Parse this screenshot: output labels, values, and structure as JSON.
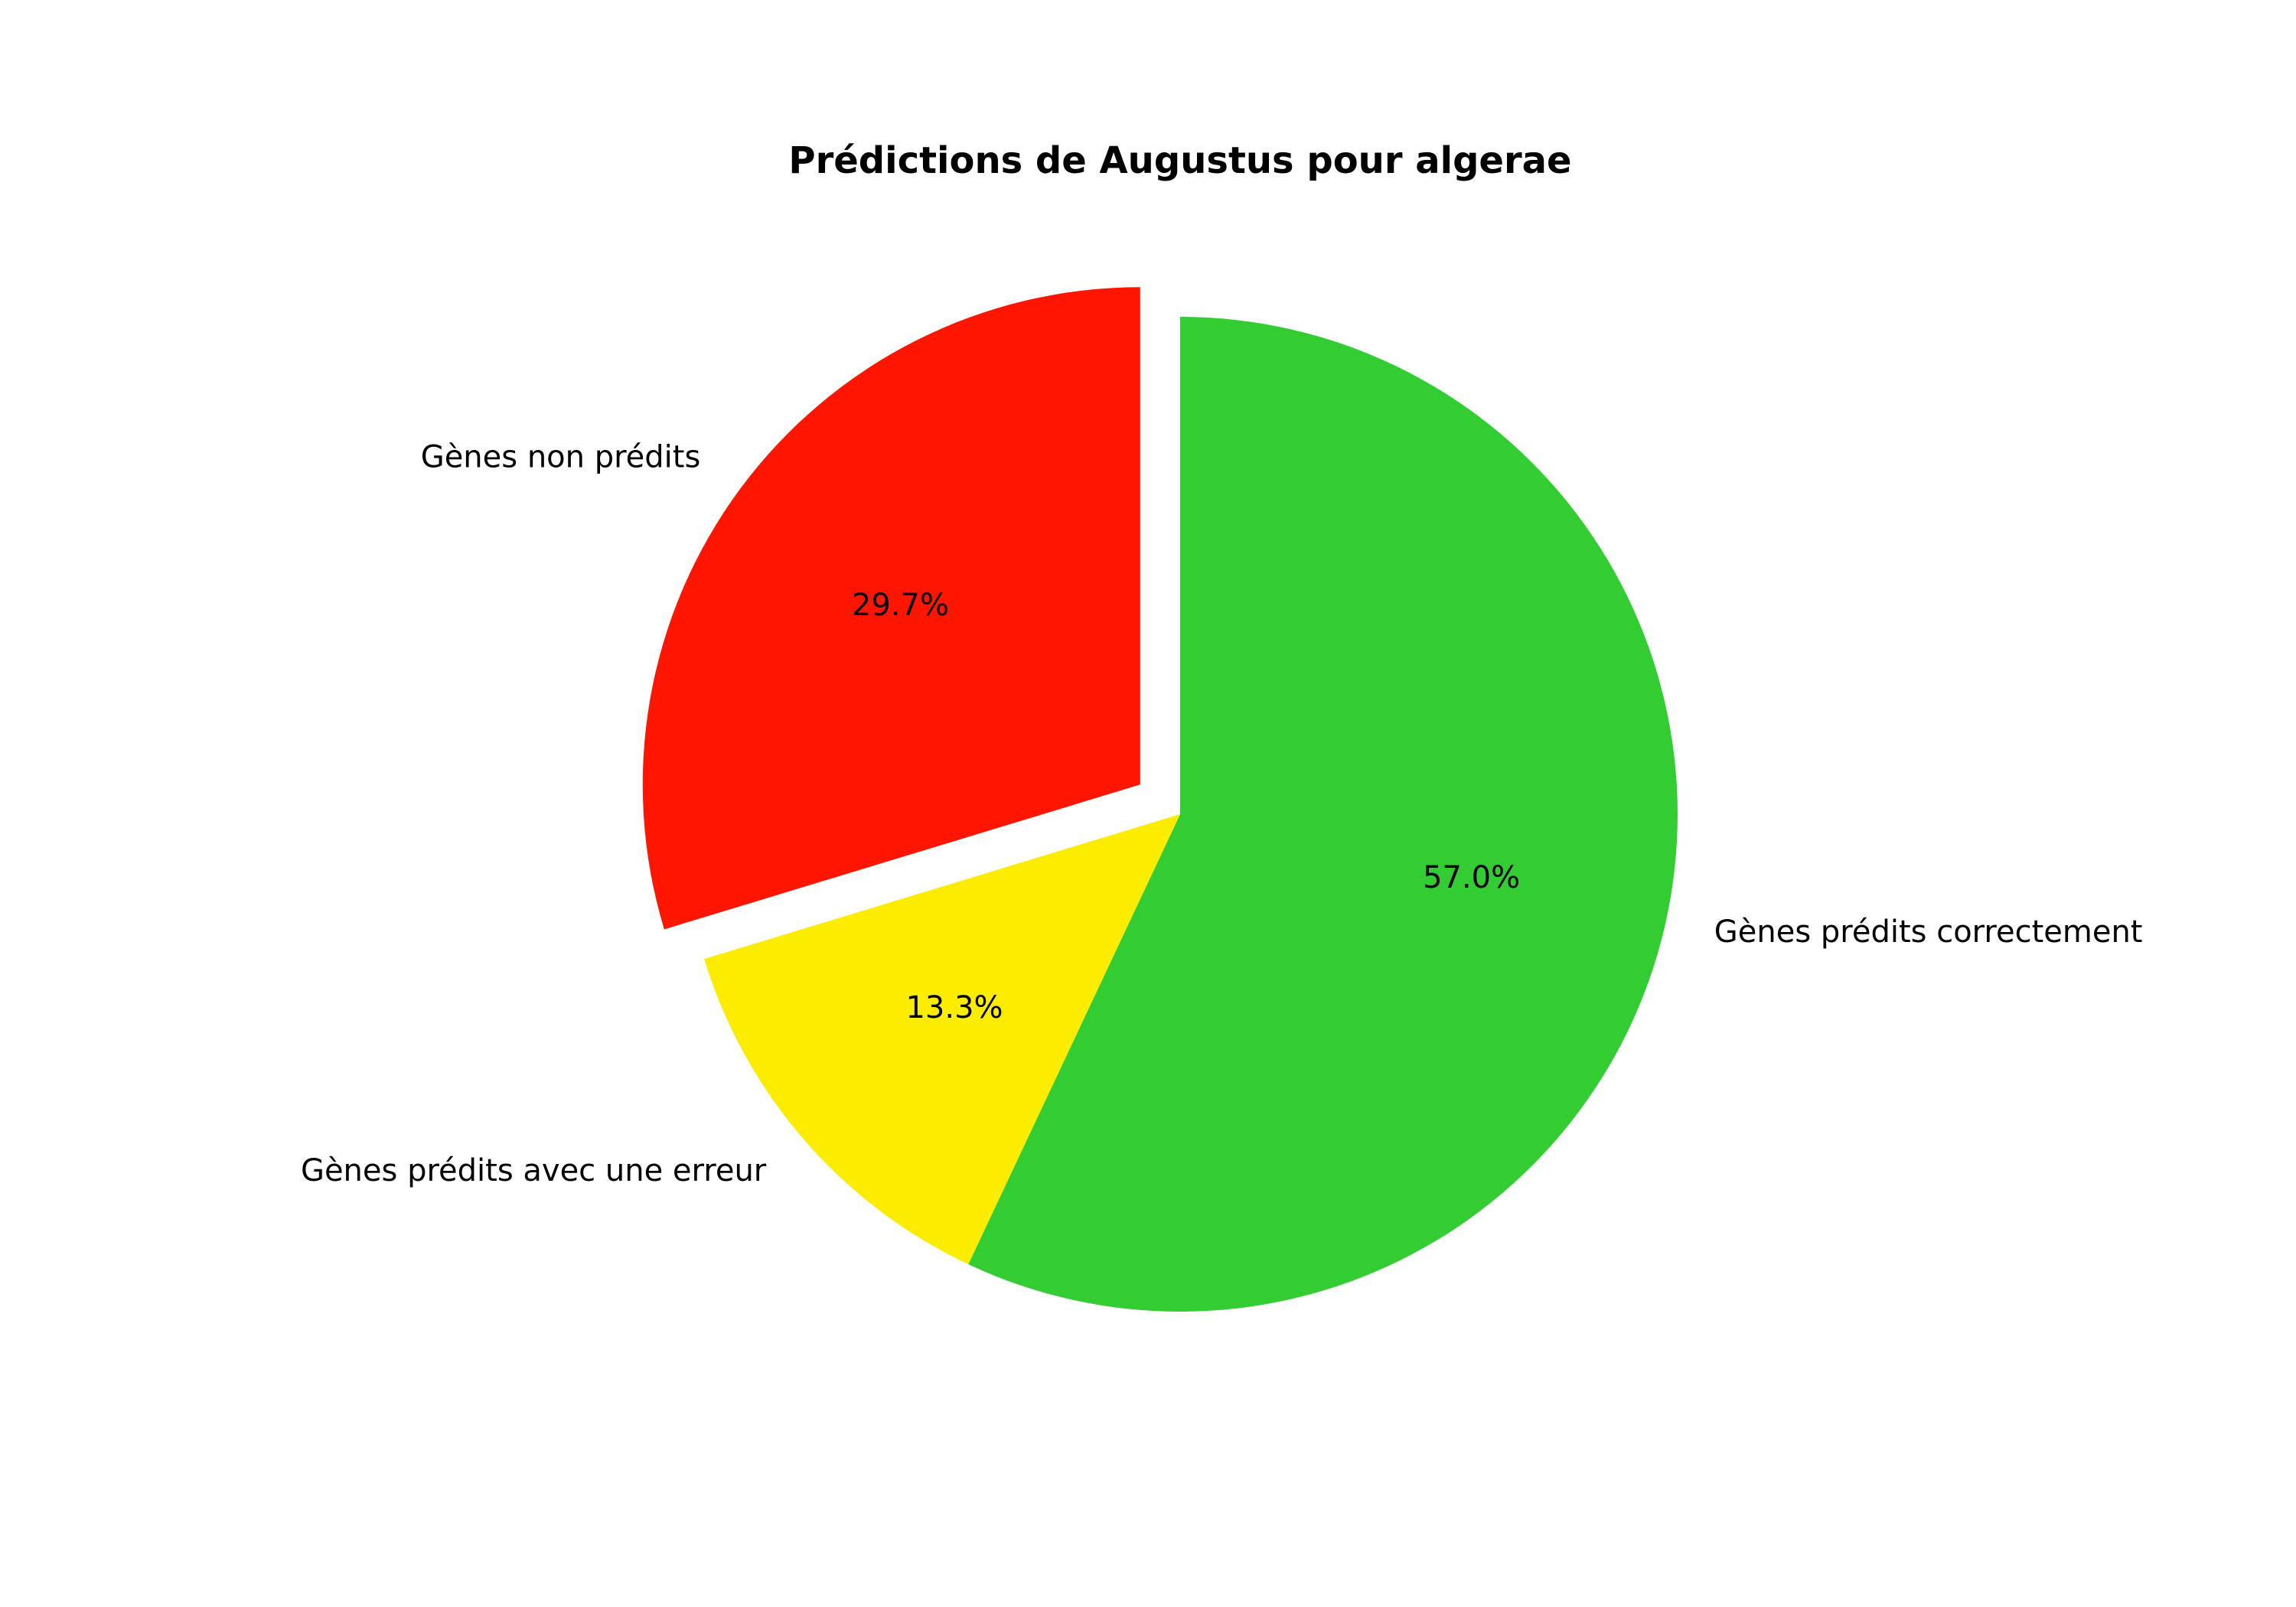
{
  "chart_data": {
    "type": "pie",
    "title": "Prédictions de Augustus pour algerae",
    "slices": [
      {
        "label": "Gènes prédits correctement",
        "value": 57.0,
        "pct_label": "57.0%",
        "color": "#33cc33",
        "exploded": false
      },
      {
        "label": "Gènes prédits avec une erreur",
        "value": 13.3,
        "pct_label": "13.3%",
        "color": "#fcec00",
        "exploded": false
      },
      {
        "label": "Gènes non prédits",
        "value": 29.7,
        "pct_label": "29.7%",
        "color": "#ff1500",
        "exploded": true
      }
    ],
    "start_angle_deg": 90,
    "direction": "clockwise",
    "legend": "none"
  }
}
